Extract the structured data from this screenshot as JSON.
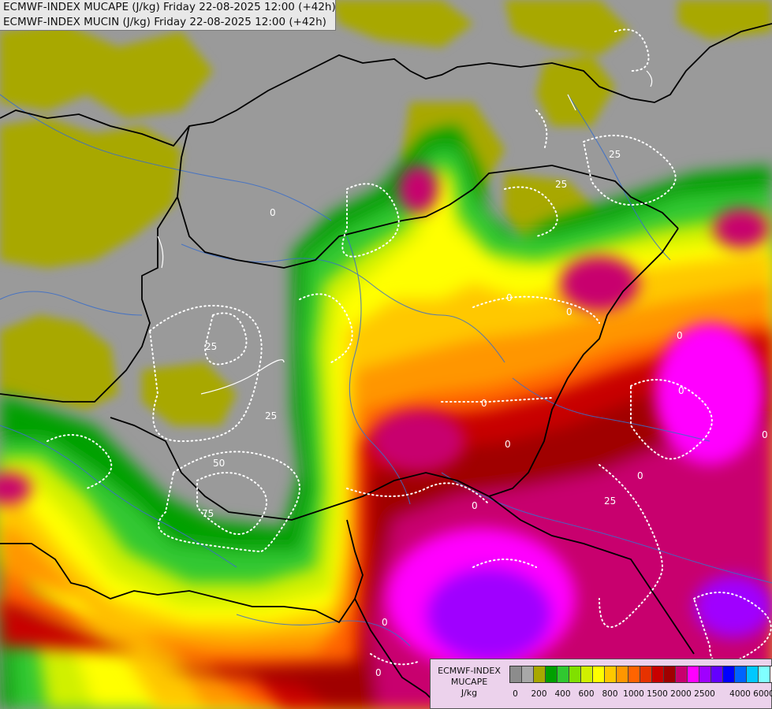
{
  "header": {
    "line1": "ECMWF-INDEX MUCAPE (J/kg) Friday 22-08-2025 12:00 (+42h)",
    "line2": "ECMWF-INDEX MUCIN (J/kg) Friday 22-08-2025 12:00 (+42h)"
  },
  "legend": {
    "title1": "ECMWF-INDEX",
    "title2": "MUCAPE",
    "units": "J/kg",
    "colors": [
      "#8c8c8c",
      "#a8a8a8",
      "#a8a800",
      "#00a000",
      "#30c830",
      "#80e000",
      "#d0f000",
      "#ffff00",
      "#ffc800",
      "#ff9600",
      "#ff6400",
      "#e63200",
      "#c80000",
      "#a00000",
      "#c8006e",
      "#ff00ff",
      "#a000ff",
      "#6400ff",
      "#0000ff",
      "#0064ff",
      "#00c8ff",
      "#80ffff",
      "#ffffff"
    ],
    "tick_labels": [
      "0",
      "200",
      "400",
      "600",
      "800",
      "1000",
      "1500",
      "2000",
      "2500",
      "4000",
      "6000"
    ]
  },
  "contours": {
    "labels": [
      "0",
      "0",
      "0",
      "0",
      "0",
      "0",
      "0",
      "0",
      "0",
      "0",
      "0",
      "0",
      "25",
      "25",
      "25",
      "25",
      "25",
      "50",
      "75"
    ]
  }
}
